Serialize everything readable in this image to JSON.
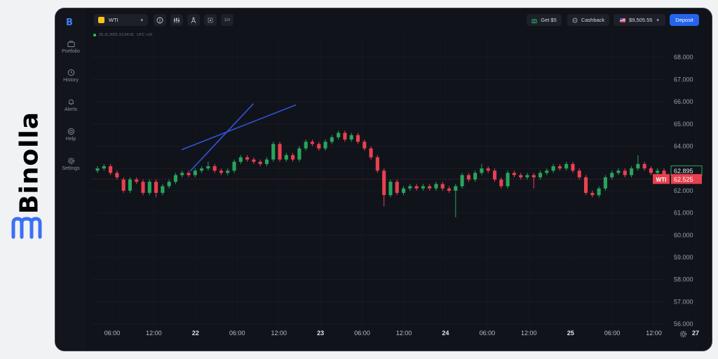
{
  "brand": {
    "name": "Binolla"
  },
  "sidebar": {
    "items": [
      {
        "label": "Portfolio",
        "icon": "briefcase-icon"
      },
      {
        "label": "History",
        "icon": "clock-icon"
      },
      {
        "label": "Alerts",
        "icon": "bell-icon"
      },
      {
        "label": "Help",
        "icon": "lifebuoy-icon"
      },
      {
        "label": "Settings",
        "icon": "gear-icon"
      }
    ]
  },
  "header": {
    "asset": "WTI",
    "timeframe": "1m",
    "get_bonus": "Get $5",
    "cashback": "Cashback",
    "balance": "$9,505.55",
    "deposit": "Deposit"
  },
  "chart_info": {
    "datetime": "25.11.2021 21:04:31",
    "timezone": "UTC +10"
  },
  "colors": {
    "up": "#26a65b",
    "down": "#e8414f",
    "trendline": "#2f54d9",
    "accent": "#2563eb"
  },
  "chart_data": {
    "type": "candlestick",
    "x_tick_labels": [
      "06:00",
      "12:00",
      "22",
      "06:00",
      "12:00",
      "23",
      "06:00",
      "12:00",
      "24",
      "06:00",
      "12:00",
      "25",
      "06:00",
      "12:00",
      "27"
    ],
    "y_tick_labels": [
      "56.000",
      "57.000",
      "58.000",
      "59.000",
      "60.000",
      "61.000",
      "62.000",
      "63.000",
      "64.000",
      "65.000",
      "66.000",
      "67.000",
      "68.000"
    ],
    "ylim": [
      55.5,
      69.0
    ],
    "price_labels": {
      "ask": "62.895",
      "current": "62.525",
      "current_label": "WTI"
    },
    "candles": [
      [
        62.9,
        63.0,
        63.1,
        62.8
      ],
      [
        63.0,
        63.1,
        63.2,
        62.9
      ],
      [
        63.1,
        62.8,
        63.2,
        62.7
      ],
      [
        62.8,
        62.6,
        62.9,
        62.5
      ],
      [
        62.5,
        62.0,
        62.6,
        61.9
      ],
      [
        62.0,
        62.5,
        62.6,
        61.9
      ],
      [
        62.5,
        62.4,
        62.6,
        62.3
      ],
      [
        62.4,
        61.9,
        62.5,
        61.8
      ],
      [
        61.9,
        62.4,
        62.5,
        61.8
      ],
      [
        62.4,
        61.9,
        62.5,
        61.7
      ],
      [
        61.9,
        62.2,
        62.3,
        61.8
      ],
      [
        62.2,
        62.4,
        62.5,
        62.1
      ],
      [
        62.4,
        62.7,
        62.8,
        62.3
      ],
      [
        62.7,
        62.8,
        62.9,
        62.6
      ],
      [
        62.8,
        62.7,
        62.9,
        62.6
      ],
      [
        62.7,
        62.9,
        63.0,
        62.6
      ],
      [
        62.9,
        63.0,
        63.1,
        62.8
      ],
      [
        63.0,
        63.1,
        63.3,
        62.9
      ],
      [
        63.1,
        62.9,
        63.2,
        62.8
      ],
      [
        62.9,
        62.8,
        63.0,
        62.7
      ],
      [
        62.8,
        62.9,
        63.0,
        62.7
      ],
      [
        62.9,
        63.3,
        63.4,
        62.8
      ],
      [
        63.3,
        63.5,
        63.6,
        63.2
      ],
      [
        63.5,
        63.4,
        63.6,
        63.3
      ],
      [
        63.4,
        63.3,
        63.5,
        63.2
      ],
      [
        63.3,
        63.2,
        63.4,
        63.1
      ],
      [
        63.2,
        63.4,
        63.5,
        63.1
      ],
      [
        63.4,
        64.1,
        64.2,
        63.3
      ],
      [
        64.1,
        63.4,
        64.2,
        63.3
      ],
      [
        63.4,
        63.6,
        63.7,
        63.3
      ],
      [
        63.6,
        63.4,
        63.7,
        63.3
      ],
      [
        63.4,
        63.9,
        64.0,
        63.3
      ],
      [
        63.9,
        64.2,
        64.3,
        63.8
      ],
      [
        64.2,
        64.1,
        64.3,
        64.0
      ],
      [
        64.1,
        63.9,
        64.2,
        63.8
      ],
      [
        63.9,
        64.2,
        64.3,
        63.8
      ],
      [
        64.2,
        64.4,
        64.5,
        64.1
      ],
      [
        64.4,
        64.6,
        64.7,
        64.3
      ],
      [
        64.6,
        64.3,
        64.7,
        64.2
      ],
      [
        64.3,
        64.5,
        64.6,
        64.2
      ],
      [
        64.5,
        64.2,
        64.6,
        64.1
      ],
      [
        64.2,
        63.9,
        64.3,
        63.8
      ],
      [
        63.9,
        63.5,
        64.0,
        63.4
      ],
      [
        63.5,
        62.9,
        63.6,
        62.8
      ],
      [
        62.9,
        61.8,
        63.0,
        61.3
      ],
      [
        61.8,
        62.4,
        62.5,
        61.7
      ],
      [
        62.4,
        61.9,
        62.5,
        61.8
      ],
      [
        61.9,
        62.1,
        62.2,
        61.8
      ],
      [
        62.1,
        62.2,
        62.3,
        62.0
      ],
      [
        62.2,
        62.1,
        62.3,
        62.0
      ],
      [
        62.1,
        62.2,
        62.3,
        62.0
      ],
      [
        62.2,
        62.1,
        62.3,
        62.0
      ],
      [
        62.1,
        62.3,
        62.4,
        62.0
      ],
      [
        62.3,
        62.1,
        62.4,
        62.0
      ],
      [
        62.1,
        62.0,
        62.2,
        61.9
      ],
      [
        62.0,
        62.2,
        62.3,
        60.8
      ],
      [
        62.2,
        62.7,
        62.8,
        62.1
      ],
      [
        62.7,
        62.5,
        62.8,
        62.4
      ],
      [
        62.5,
        62.8,
        62.9,
        62.4
      ],
      [
        62.8,
        63.0,
        63.2,
        62.7
      ],
      [
        63.0,
        62.9,
        63.1,
        62.8
      ],
      [
        62.9,
        62.5,
        63.0,
        62.4
      ],
      [
        62.5,
        62.2,
        62.6,
        62.1
      ],
      [
        62.2,
        62.8,
        62.9,
        62.1
      ],
      [
        62.8,
        62.7,
        62.9,
        62.6
      ],
      [
        62.7,
        62.6,
        62.8,
        62.5
      ],
      [
        62.6,
        62.7,
        62.8,
        62.5
      ],
      [
        62.7,
        62.6,
        62.8,
        62.1
      ],
      [
        62.6,
        62.8,
        62.9,
        62.5
      ],
      [
        62.8,
        62.9,
        63.0,
        62.7
      ],
      [
        62.9,
        63.1,
        63.2,
        62.8
      ],
      [
        63.1,
        63.0,
        63.2,
        62.9
      ],
      [
        63.0,
        63.2,
        63.3,
        62.9
      ],
      [
        63.2,
        62.9,
        63.3,
        62.8
      ],
      [
        62.9,
        62.6,
        63.0,
        62.5
      ],
      [
        62.6,
        61.9,
        62.7,
        61.8
      ],
      [
        61.9,
        61.8,
        62.0,
        61.7
      ],
      [
        61.8,
        62.1,
        62.2,
        61.7
      ],
      [
        62.1,
        62.6,
        62.7,
        62.0
      ],
      [
        62.6,
        62.8,
        62.9,
        62.5
      ],
      [
        62.8,
        62.9,
        63.0,
        62.7
      ],
      [
        62.9,
        62.7,
        63.0,
        62.6
      ],
      [
        62.7,
        63.0,
        63.1,
        62.6
      ],
      [
        63.0,
        63.2,
        63.6,
        62.9
      ],
      [
        63.2,
        63.0,
        63.3,
        62.9
      ],
      [
        63.0,
        62.8,
        63.1,
        62.7
      ],
      [
        62.8,
        62.9,
        63.0,
        62.7
      ],
      [
        62.9,
        62.6,
        63.0,
        62.5
      ]
    ],
    "trendlines": [
      {
        "from": [
          13.0,
          63.85
        ],
        "to": [
          30.4,
          65.85
        ]
      },
      {
        "from": [
          14.3,
          62.9
        ],
        "to": [
          23.9,
          65.9
        ]
      }
    ]
  }
}
